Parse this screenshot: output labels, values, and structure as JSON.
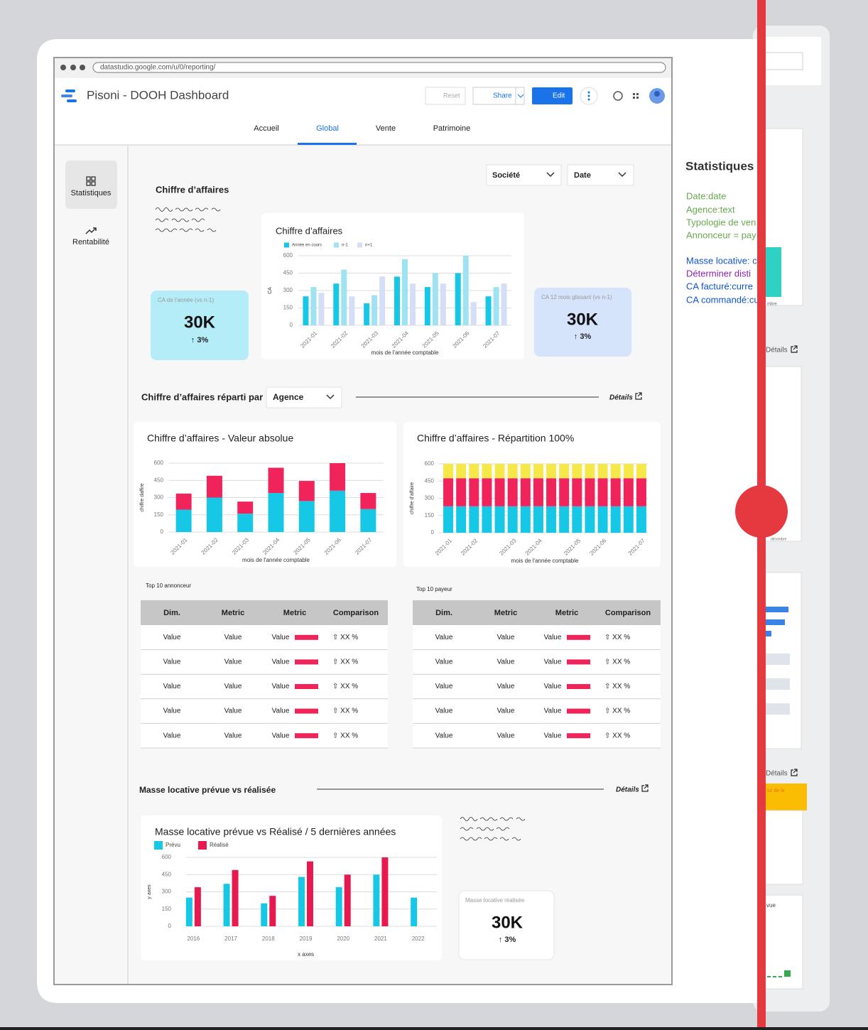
{
  "browser": {
    "url": "datastudio.google.com/u/0/reporting/"
  },
  "header": {
    "title": "Pisoni - DOOH Dashboard",
    "reset": "Reset",
    "share": "Share",
    "edit": "Edit"
  },
  "tabs": [
    "Accueil",
    "Global",
    "Vente",
    "Patrimoine"
  ],
  "sidebar": [
    "Statistiques",
    "Rentabilité"
  ],
  "filters": [
    "Société",
    "Date"
  ],
  "sections": [
    {
      "title": "Chiffre d’affaires"
    },
    {
      "title": "Chiffre d’affaires réparti par",
      "dropdown": "Agence",
      "link": "Détails"
    },
    {
      "title": "Masse locative prévue vs réalisée",
      "link": "Détails"
    }
  ],
  "kpis": [
    {
      "label": "CA de l’année (vs n-1)",
      "value": "30K",
      "change": "↑ 3%"
    },
    {
      "label": "CA 12 mois glissant (vs n-1)",
      "value": "30K",
      "change": "↑ 3%"
    },
    {
      "label": "Masse locative réalisée",
      "value": "30K",
      "change": "↑ 3%"
    }
  ],
  "chart_data": [
    {
      "type": "bar",
      "title": "Chiffre d’affaires",
      "categories": [
        "2021-01",
        "2021-02",
        "2021-03",
        "2021-04",
        "2021-05",
        "2021-06",
        "2021-07"
      ],
      "series": [
        {
          "name": "Année en cours",
          "color": "#16c8e6",
          "values": [
            250,
            360,
            190,
            420,
            330,
            450,
            250
          ]
        },
        {
          "name": "n-1",
          "color": "#9fe3f3",
          "values": [
            330,
            480,
            260,
            570,
            450,
            600,
            330
          ]
        },
        {
          "name": "n+1",
          "color": "#d4def7",
          "values": [
            280,
            250,
            420,
            360,
            360,
            200,
            360
          ]
        }
      ],
      "ylim": [
        0,
        600
      ],
      "yticks": [
        0,
        150,
        300,
        450,
        600
      ],
      "ylabel": "CA",
      "xlabel": "mois de l'année comptable",
      "grid": true
    },
    {
      "type": "bar",
      "stacked": true,
      "title": "Chiffre d’affaires - Valeur absolue",
      "categories": [
        "2021-01",
        "2021-02",
        "2021-03",
        "2021-04",
        "2021-05",
        "2021-06",
        "2021-07"
      ],
      "series": [
        {
          "color": "#16c8e6",
          "values": [
            195,
            300,
            160,
            340,
            270,
            360,
            200
          ]
        },
        {
          "color": "#f0245a",
          "values": [
            140,
            190,
            105,
            220,
            175,
            240,
            140
          ]
        }
      ],
      "ylim": [
        0,
        600
      ],
      "yticks": [
        0,
        150,
        300,
        450,
        600
      ],
      "ylabel": "chiffre daffire",
      "xlabel": "mois de l'année comptable",
      "grid": true
    },
    {
      "type": "bar",
      "stacked": true,
      "title": "Chiffre d’affaires - Répartition 100%",
      "categories": [
        "2021-01",
        null,
        "2021-02",
        null,
        null,
        "2021-03",
        null,
        "2021-04",
        null,
        null,
        "2021-05",
        null,
        "2021-06",
        null,
        null,
        "2021-07"
      ],
      "series": [
        {
          "color": "#16c8e6",
          "values": [
            230,
            230,
            230,
            230,
            230,
            230,
            230,
            230,
            230,
            230,
            230,
            230,
            230,
            230,
            230,
            230
          ]
        },
        {
          "color": "#f0245a",
          "values": [
            245,
            245,
            245,
            245,
            245,
            245,
            245,
            245,
            245,
            245,
            245,
            245,
            245,
            245,
            245,
            245
          ]
        },
        {
          "color": "#f7e84a",
          "values": [
            125,
            125,
            125,
            125,
            125,
            125,
            125,
            125,
            125,
            125,
            125,
            125,
            125,
            125,
            125,
            125
          ]
        }
      ],
      "ylim": [
        0,
        600
      ],
      "yticks": [
        0,
        150,
        300,
        450,
        600
      ],
      "ylabel": "chiffre d'affaire",
      "xlabel": "mois de l'année comptable",
      "grid": true
    },
    {
      "type": "bar",
      "title": "Masse locative prévue vs Réalisé / 5 dernières années",
      "categories": [
        "2016",
        "2017",
        "2018",
        "2019",
        "2020",
        "2021",
        "2022"
      ],
      "series": [
        {
          "name": "Prévu",
          "color": "#16c8e6",
          "values": [
            250,
            370,
            200,
            430,
            340,
            450,
            250
          ]
        },
        {
          "name": "Réalisé",
          "color": "#e8194e",
          "values": [
            340,
            490,
            265,
            565,
            450,
            600,
            null
          ]
        }
      ],
      "ylim": [
        0,
        600
      ],
      "yticks": [
        0,
        150,
        300,
        450,
        600
      ],
      "ylabel": "y axes",
      "xlabel": "x axes",
      "grid": true
    }
  ],
  "tables": [
    {
      "title": "Top 10 annonceur",
      "columns": [
        "Dim.",
        "Metric",
        "Metric",
        "Comparison"
      ],
      "rows": [
        [
          "Value",
          "Value",
          "Value",
          "⇧ XX %"
        ],
        [
          "Value",
          "Value",
          "Value",
          "⇧ XX %"
        ],
        [
          "Value",
          "Value",
          "Value",
          "⇧ XX %"
        ],
        [
          "Value",
          "Value",
          "Value",
          "⇧ XX %"
        ],
        [
          "Value",
          "Value",
          "Value",
          "⇧ XX %"
        ]
      ]
    },
    {
      "title": "Top 10 payeur",
      "columns": [
        "Dim.",
        "Metric",
        "Metric",
        "Comparison"
      ],
      "rows": [
        [
          "Value",
          "Value",
          "Value",
          "⇧ XX %"
        ],
        [
          "Value",
          "Value",
          "Value",
          "⇧ XX %"
        ],
        [
          "Value",
          "Value",
          "Value",
          "⇧ XX %"
        ],
        [
          "Value",
          "Value",
          "Value",
          "⇧ XX %"
        ],
        [
          "Value",
          "Value",
          "Value",
          "⇧ XX %"
        ]
      ]
    }
  ],
  "notes": {
    "title": "Statistiques g",
    "lines": [
      {
        "text": "Date:date",
        "color": "#6aa84f"
      },
      {
        "text": "Agence:text",
        "color": "#6aa84f"
      },
      {
        "text": "Typologie de ven",
        "color": "#6aa84f"
      },
      {
        "text": "Annonceur = pay",
        "color": "#6aa84f"
      },
      {
        "text": "Masse locative: c",
        "color": "#1155cc"
      },
      {
        "text": "Déterminer disti",
        "color": "#8e24aa"
      },
      {
        "text": "CA facturé:curre",
        "color": "#1155cc"
      },
      {
        "text": "CA commandé:cu",
        "color": "#1155cc"
      }
    ]
  },
  "background_panel": {
    "links": [
      "Détails",
      "Détails"
    ],
    "labels": [
      "mbre",
      "décembre",
      "se de la",
      "vue"
    ]
  }
}
